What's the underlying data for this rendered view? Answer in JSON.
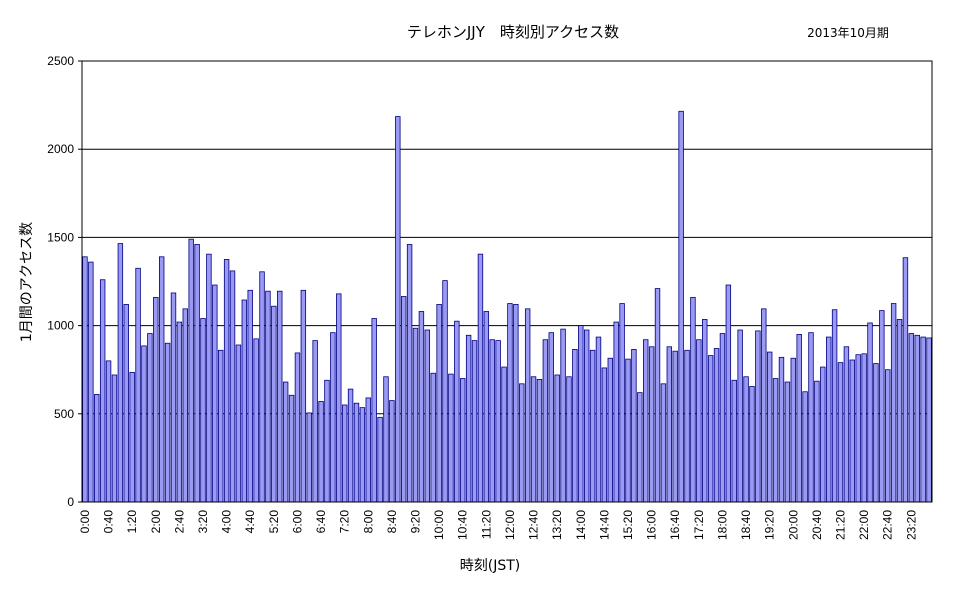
{
  "chart_data": {
    "type": "bar",
    "title": "テレホンJJY　時刻別アクセス数",
    "period_label": "2013年10月期",
    "xlabel": "時刻(JST)",
    "ylabel": "1月間のアクセス数",
    "ylim": [
      0,
      2500
    ],
    "y_ticks": [
      "0",
      "500",
      "1000",
      "1500",
      "2000",
      "2500"
    ],
    "grid": "horizontal major gridlines",
    "legend": "none",
    "bar_interval_minutes": 10,
    "x_tick_labels": [
      "0:00",
      "0:40",
      "1:20",
      "2:00",
      "2:40",
      "3:20",
      "4:00",
      "4:40",
      "5:20",
      "6:00",
      "6:40",
      "7:20",
      "8:00",
      "8:40",
      "9:20",
      "10:00",
      "10:40",
      "11:20",
      "12:00",
      "12:40",
      "13:20",
      "14:00",
      "14:40",
      "15:20",
      "16:00",
      "16:40",
      "17:20",
      "18:00",
      "18:40",
      "19:20",
      "20:00",
      "20:40",
      "21:20",
      "22:00",
      "22:40",
      "23:20"
    ],
    "colors": {
      "bar_fill": "#9a9af5",
      "bar_stroke": "#000080",
      "grid": "#000000"
    },
    "values": [
      1390,
      1360,
      610,
      1260,
      800,
      720,
      1465,
      1120,
      735,
      1325,
      885,
      955,
      1160,
      1390,
      900,
      1185,
      1020,
      1095,
      1490,
      1460,
      1040,
      1405,
      1230,
      860,
      1375,
      1310,
      890,
      1145,
      1200,
      925,
      1305,
      1195,
      1110,
      1195,
      680,
      605,
      845,
      1200,
      505,
      915,
      570,
      690,
      960,
      1180,
      550,
      640,
      560,
      535,
      590,
      1040,
      480,
      710,
      575,
      2185,
      1165,
      1460,
      985,
      1080,
      975,
      730,
      1120,
      1255,
      725,
      1025,
      700,
      945,
      915,
      1405,
      1080,
      920,
      915,
      765,
      1125,
      1120,
      670,
      1095,
      710,
      695,
      920,
      960,
      720,
      980,
      710,
      865,
      1000,
      975,
      860,
      935,
      760,
      815,
      1020,
      1125,
      810,
      865,
      620,
      920,
      880,
      1210,
      670,
      880,
      855,
      2215,
      860,
      1160,
      920,
      1035,
      830,
      870,
      955,
      1230,
      690,
      975,
      710,
      655,
      970,
      1095,
      850,
      700,
      820,
      680,
      815,
      950,
      625,
      960,
      685,
      765,
      935,
      1090,
      790,
      880,
      805,
      835,
      840,
      1015,
      785,
      1085,
      750,
      1125,
      1035,
      1385,
      955,
      945,
      935,
      930
    ]
  }
}
